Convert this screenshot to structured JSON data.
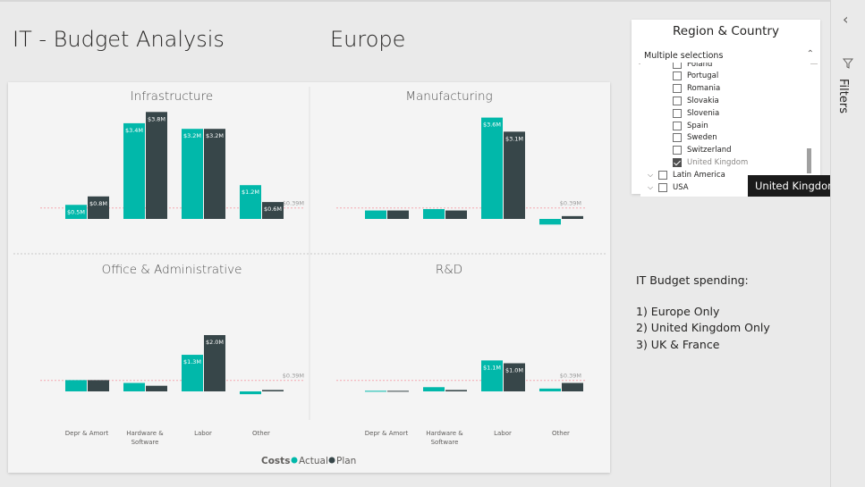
{
  "header": {
    "title": "IT - Budget Analysis",
    "region": "Europe"
  },
  "chart_data": {
    "type": "bar",
    "legend": {
      "title": "Costs",
      "items": [
        "Actual",
        "Plan"
      ],
      "position": "bottom-center"
    },
    "colors": {
      "Actual": "#01b8aa",
      "Plan": "#374649",
      "reference": "#f3a8b0"
    },
    "categories": [
      "Depr & Amort",
      "Hardware & Software",
      "Labor",
      "Other"
    ],
    "reference_line": {
      "value": 0.39,
      "label": "$0.39M"
    },
    "panels": [
      {
        "title": "Infrastructure",
        "series": [
          {
            "name": "Actual",
            "values": [
              0.5,
              3.4,
              3.2,
              1.2
            ],
            "labels": [
              "$0.5M",
              "$3.4M",
              "$3.2M",
              "$1.2M"
            ]
          },
          {
            "name": "Plan",
            "values": [
              0.8,
              3.8,
              3.2,
              0.6
            ],
            "labels": [
              "$0.8M",
              "$3.8M",
              "$3.2M",
              "$0.6M"
            ]
          }
        ]
      },
      {
        "title": "Manufacturing",
        "series": [
          {
            "name": "Actual",
            "values": [
              0.3,
              0.35,
              3.6,
              -0.2
            ],
            "labels": [
              "",
              "",
              "$3.6M",
              ""
            ]
          },
          {
            "name": "Plan",
            "values": [
              0.3,
              0.3,
              3.1,
              0.1
            ],
            "labels": [
              "",
              "",
              "$3.1M",
              ""
            ]
          }
        ]
      },
      {
        "title": "Office & Administrative",
        "series": [
          {
            "name": "Actual",
            "values": [
              0.4,
              0.3,
              1.3,
              -0.1
            ],
            "labels": [
              "",
              "",
              "$1.3M",
              ""
            ]
          },
          {
            "name": "Plan",
            "values": [
              0.4,
              0.2,
              2.0,
              0.05
            ],
            "labels": [
              "",
              "",
              "$2.0M",
              ""
            ]
          }
        ]
      },
      {
        "title": "R&D",
        "series": [
          {
            "name": "Actual",
            "values": [
              0.02,
              0.15,
              1.1,
              0.1
            ],
            "labels": [
              "",
              "",
              "$1.1M",
              ""
            ]
          },
          {
            "name": "Plan",
            "values": [
              0.02,
              0.05,
              1.0,
              0.3
            ],
            "labels": [
              "",
              "",
              "$1.0M",
              ""
            ]
          }
        ]
      }
    ]
  },
  "slicer": {
    "title": "Region & Country",
    "selection": "Multiple selections",
    "items": [
      {
        "label": "Poland",
        "checked": false,
        "partial": true
      },
      {
        "label": "Portugal",
        "checked": false
      },
      {
        "label": "Romania",
        "checked": false
      },
      {
        "label": "Slovakia",
        "checked": false
      },
      {
        "label": "Slovenia",
        "checked": false
      },
      {
        "label": "Spain",
        "checked": false
      },
      {
        "label": "Sweden",
        "checked": false
      },
      {
        "label": "Switzerland",
        "checked": false
      },
      {
        "label": "United Kingdom",
        "checked": true
      }
    ],
    "groups": [
      {
        "label": "Latin America",
        "checked": false
      },
      {
        "label": "USA",
        "checked": false
      }
    ]
  },
  "tooltip": "United Kingdom",
  "notes": {
    "heading": "IT Budget spending:",
    "items": [
      "1) Europe Only",
      "2) United Kingdom Only",
      "3) UK & France"
    ]
  },
  "filters": {
    "label": "Filters"
  }
}
